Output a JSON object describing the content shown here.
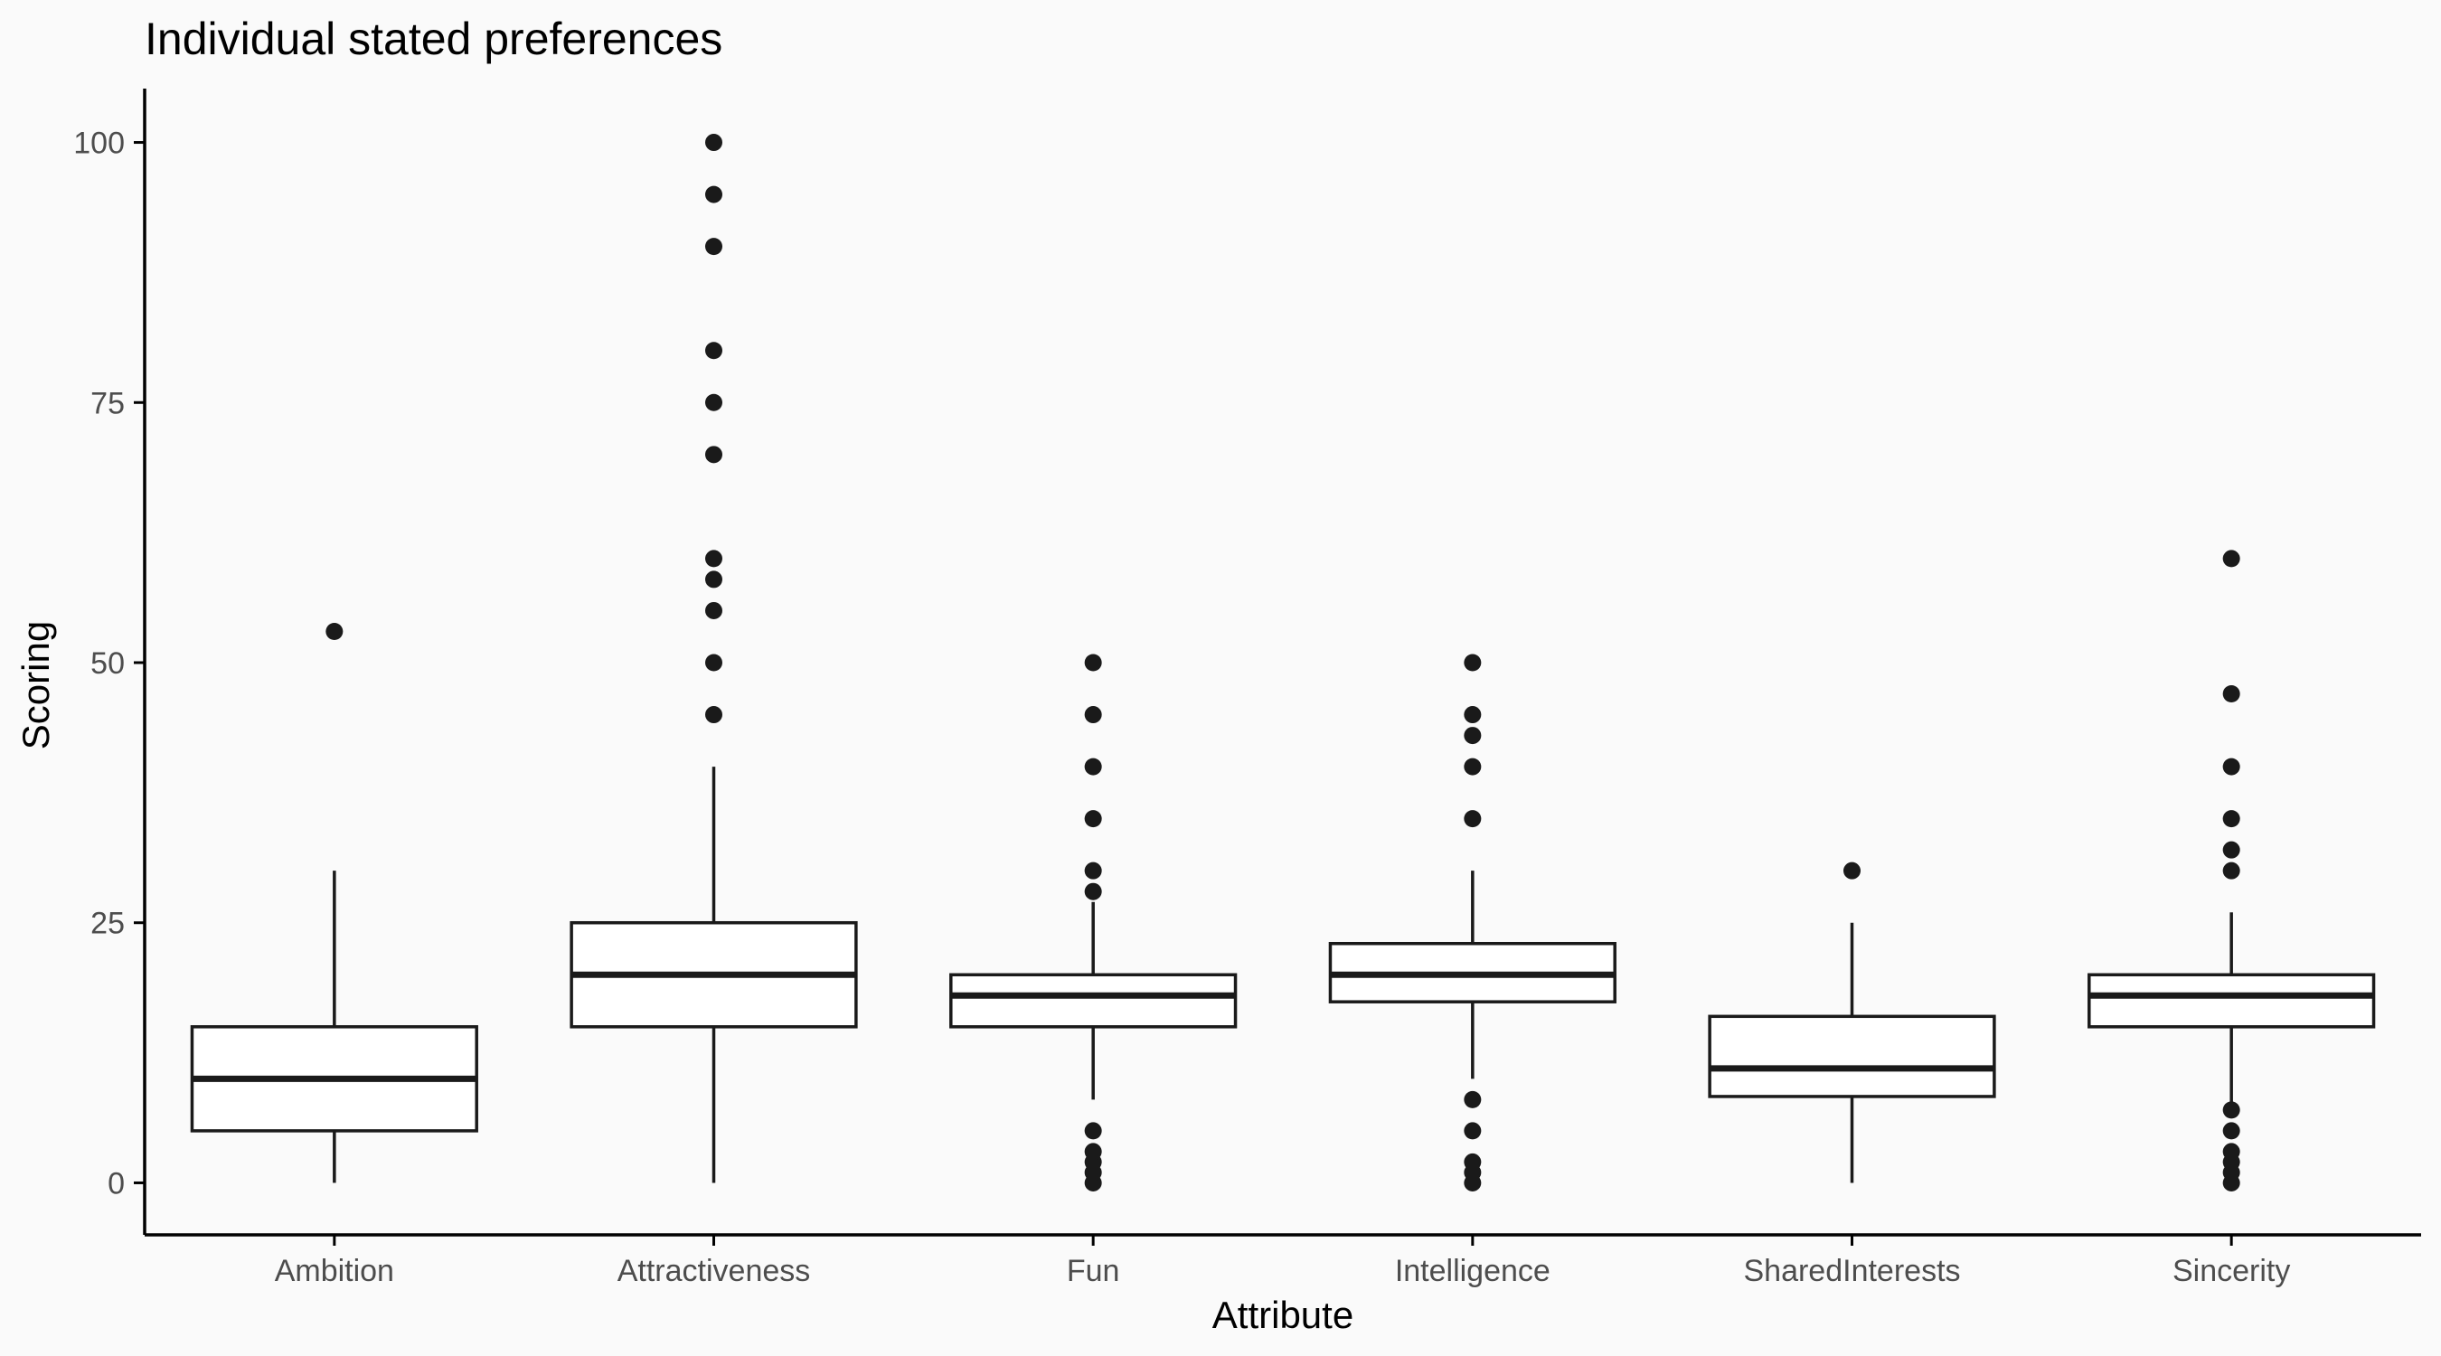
{
  "chart_data": {
    "type": "box",
    "title": "Individual stated preferences",
    "xlabel": "Attribute",
    "ylabel": "Scoring",
    "ylim": [
      -5,
      105
    ],
    "yticks": [
      0,
      25,
      50,
      75,
      100
    ],
    "grid": false,
    "legend": "none",
    "categories": [
      "Ambition",
      "Attractiveness",
      "Fun",
      "Intelligence",
      "SharedInterests",
      "Sincerity"
    ],
    "boxes": [
      {
        "category": "Ambition",
        "whisker_low": 0,
        "q1": 5,
        "median": 10,
        "q3": 15,
        "whisker_high": 30,
        "outliers": [
          53
        ]
      },
      {
        "category": "Attractiveness",
        "whisker_low": 0,
        "q1": 15,
        "median": 20,
        "q3": 25,
        "whisker_high": 40,
        "outliers": [
          45,
          50,
          55,
          58,
          60,
          70,
          75,
          80,
          90,
          95,
          100
        ]
      },
      {
        "category": "Fun",
        "whisker_low": 8,
        "q1": 15,
        "median": 18,
        "q3": 20,
        "whisker_high": 27,
        "outliers": [
          0,
          1,
          2,
          3,
          5,
          28,
          30,
          35,
          40,
          45,
          50
        ]
      },
      {
        "category": "Intelligence",
        "whisker_low": 10,
        "q1": 17.4,
        "median": 20,
        "q3": 23,
        "whisker_high": 30,
        "outliers": [
          0,
          1,
          2,
          5,
          8,
          35,
          40,
          43,
          45,
          50
        ]
      },
      {
        "category": "SharedInterests",
        "whisker_low": 0,
        "q1": 8.3,
        "median": 11,
        "q3": 16,
        "whisker_high": 25,
        "outliers": [
          30
        ]
      },
      {
        "category": "Sincerity",
        "whisker_low": 7.5,
        "q1": 15,
        "median": 18,
        "q3": 20,
        "whisker_high": 26,
        "outliers": [
          0,
          1,
          2,
          3,
          5,
          7,
          30,
          32,
          35,
          40,
          47,
          60
        ]
      }
    ],
    "colors": {
      "background": "#fafafa",
      "box_fill": "#ffffff",
      "box_stroke": "#1a1a1a",
      "axis": "#000000",
      "tick_label": "#4d4d4d"
    }
  }
}
